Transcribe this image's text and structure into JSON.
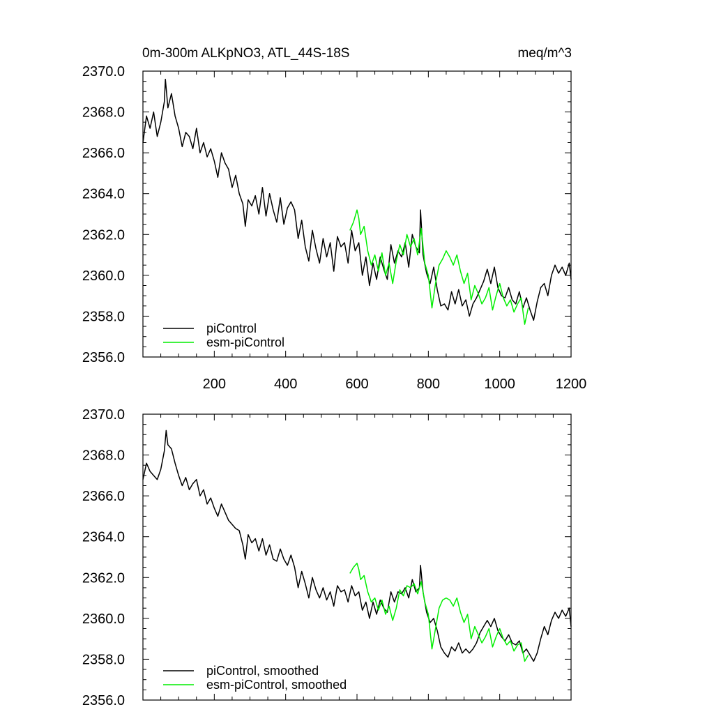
{
  "chart_data": [
    {
      "type": "line",
      "title": "0m-300m ALKpNO3, ATL_44S-18S",
      "units": "meq/m^3",
      "xlim": [
        0,
        1200
      ],
      "ylim": [
        2356.0,
        2370.0
      ],
      "x_ticks": [
        200,
        400,
        600,
        800,
        1000,
        1200
      ],
      "y_ticks": [
        "2356.0",
        "2358.0",
        "2360.0",
        "2362.0",
        "2364.0",
        "2366.0",
        "2368.0",
        "2370.0"
      ],
      "legend_position": "bottom-left",
      "series": [
        {
          "name": "piControl",
          "color": "#000000",
          "x": [
            0,
            10,
            20,
            30,
            40,
            50,
            60,
            63,
            70,
            80,
            90,
            100,
            110,
            120,
            130,
            140,
            150,
            160,
            170,
            180,
            190,
            200,
            210,
            220,
            230,
            240,
            250,
            260,
            270,
            280,
            287,
            295,
            305,
            315,
            325,
            335,
            345,
            355,
            365,
            375,
            385,
            395,
            405,
            415,
            425,
            435,
            445,
            455,
            465,
            475,
            485,
            495,
            505,
            515,
            525,
            535,
            545,
            555,
            565,
            575,
            585,
            595,
            605,
            615,
            625,
            635,
            645,
            655,
            665,
            675,
            685,
            695,
            705,
            715,
            725,
            735,
            745,
            755,
            765,
            775,
            778,
            785,
            795,
            805,
            815,
            825,
            835,
            845,
            855,
            865,
            875,
            885,
            895,
            905,
            915,
            925,
            935,
            945,
            955,
            965,
            975,
            985,
            995,
            1005,
            1015,
            1025,
            1035,
            1045,
            1055,
            1065,
            1075,
            1085,
            1095,
            1105,
            1115,
            1125,
            1135,
            1145,
            1155,
            1165,
            1175,
            1185,
            1195,
            1200
          ],
          "y": [
            2366.5,
            2367.8,
            2367.2,
            2368.0,
            2366.8,
            2367.5,
            2368.5,
            2369.6,
            2368.2,
            2368.9,
            2367.8,
            2367.2,
            2366.3,
            2367.0,
            2366.8,
            2366.2,
            2367.2,
            2366.0,
            2366.5,
            2365.8,
            2366.2,
            2365.6,
            2364.8,
            2366.0,
            2365.5,
            2365.2,
            2364.3,
            2364.9,
            2364.0,
            2363.5,
            2362.4,
            2363.7,
            2363.4,
            2363.9,
            2363.0,
            2364.3,
            2362.9,
            2364.0,
            2363.2,
            2362.6,
            2363.8,
            2362.5,
            2363.3,
            2363.6,
            2363.2,
            2361.8,
            2362.7,
            2361.4,
            2360.7,
            2362.2,
            2361.3,
            2360.6,
            2361.8,
            2360.9,
            2361.6,
            2360.2,
            2361.9,
            2361.4,
            2361.6,
            2360.6,
            2362.2,
            2361.2,
            2361.6,
            2360.0,
            2360.9,
            2359.5,
            2360.6,
            2359.8,
            2360.9,
            2360.3,
            2359.8,
            2361.5,
            2360.6,
            2361.2,
            2360.9,
            2361.6,
            2360.4,
            2362.0,
            2361.4,
            2361.1,
            2363.2,
            2361.0,
            2360.1,
            2359.6,
            2360.4,
            2359.3,
            2358.5,
            2358.6,
            2358.3,
            2359.2,
            2358.6,
            2359.3,
            2358.5,
            2358.8,
            2358.0,
            2358.6,
            2358.9,
            2359.3,
            2359.7,
            2360.3,
            2359.6,
            2360.4,
            2359.4,
            2359.0,
            2358.9,
            2359.4,
            2358.8,
            2358.6,
            2359.2,
            2358.4,
            2358.9,
            2358.3,
            2357.8,
            2358.7,
            2359.4,
            2359.6,
            2359.0,
            2360.0,
            2360.5,
            2360.1,
            2360.4,
            2360.0,
            2360.6,
            2359.8
          ]
        },
        {
          "name": "esm-piControl",
          "color": "#00ee00",
          "x": [
            580,
            590,
            600,
            605,
            610,
            620,
            630,
            640,
            650,
            660,
            670,
            680,
            690,
            700,
            710,
            720,
            730,
            740,
            750,
            760,
            770,
            780,
            790,
            800,
            810,
            820,
            830,
            840,
            850,
            860,
            870,
            880,
            890,
            900,
            910,
            920,
            930,
            940,
            950,
            960,
            970,
            980,
            990,
            1000,
            1010,
            1020,
            1030,
            1040,
            1050,
            1060,
            1070,
            1080
          ],
          "y": [
            2362.2,
            2362.6,
            2363.2,
            2362.8,
            2362.0,
            2362.4,
            2361.2,
            2360.5,
            2361.0,
            2360.2,
            2361.1,
            2360.0,
            2360.6,
            2359.6,
            2360.7,
            2361.5,
            2361.0,
            2362.0,
            2361.4,
            2361.8,
            2361.0,
            2362.3,
            2360.6,
            2360.0,
            2358.4,
            2359.6,
            2360.5,
            2360.8,
            2361.2,
            2360.9,
            2360.5,
            2361.0,
            2360.2,
            2359.6,
            2360.1,
            2358.8,
            2359.5,
            2359.1,
            2358.6,
            2358.9,
            2359.4,
            2358.3,
            2359.0,
            2359.6,
            2358.9,
            2358.5,
            2358.8,
            2358.2,
            2358.6,
            2358.9,
            2357.6,
            2358.4
          ]
        }
      ]
    },
    {
      "type": "line",
      "title": "",
      "xlim": [
        0,
        1200
      ],
      "ylim": [
        2356.0,
        2370.0
      ],
      "y_ticks": [
        "2356.0",
        "2358.0",
        "2360.0",
        "2362.0",
        "2364.0",
        "2366.0",
        "2368.0",
        "2370.0"
      ],
      "legend_position": "bottom-left",
      "series": [
        {
          "name": "piControl, smoothed",
          "color": "#000000",
          "x": [
            0,
            10,
            20,
            30,
            40,
            50,
            60,
            65,
            70,
            80,
            90,
            100,
            110,
            120,
            130,
            140,
            150,
            160,
            170,
            180,
            190,
            200,
            210,
            220,
            230,
            240,
            250,
            260,
            270,
            280,
            287,
            295,
            305,
            315,
            325,
            335,
            345,
            355,
            365,
            375,
            385,
            395,
            405,
            415,
            425,
            435,
            445,
            455,
            465,
            475,
            485,
            495,
            505,
            515,
            525,
            535,
            545,
            555,
            565,
            575,
            585,
            595,
            605,
            615,
            625,
            635,
            645,
            655,
            665,
            675,
            685,
            695,
            705,
            715,
            725,
            735,
            745,
            755,
            765,
            775,
            778,
            785,
            795,
            805,
            815,
            825,
            835,
            845,
            855,
            865,
            875,
            885,
            895,
            905,
            915,
            925,
            935,
            945,
            955,
            965,
            975,
            985,
            995,
            1005,
            1015,
            1025,
            1035,
            1045,
            1055,
            1065,
            1075,
            1085,
            1095,
            1105,
            1115,
            1125,
            1135,
            1145,
            1155,
            1165,
            1175,
            1185,
            1195,
            1200
          ],
          "y": [
            2366.8,
            2367.6,
            2367.2,
            2367.0,
            2366.8,
            2367.3,
            2368.2,
            2369.2,
            2368.5,
            2368.3,
            2367.6,
            2367.0,
            2366.5,
            2366.9,
            2366.3,
            2366.6,
            2366.8,
            2366.0,
            2366.3,
            2365.6,
            2365.9,
            2365.4,
            2365.0,
            2365.6,
            2365.2,
            2364.8,
            2364.6,
            2364.4,
            2364.3,
            2363.6,
            2362.9,
            2364.1,
            2363.7,
            2363.9,
            2363.3,
            2363.9,
            2363.1,
            2363.6,
            2362.9,
            2362.8,
            2363.4,
            2362.9,
            2362.6,
            2363.1,
            2362.5,
            2361.5,
            2362.3,
            2361.7,
            2361.0,
            2362.0,
            2361.4,
            2361.0,
            2361.5,
            2360.9,
            2361.3,
            2360.6,
            2361.6,
            2361.3,
            2361.4,
            2360.8,
            2361.6,
            2361.1,
            2361.3,
            2360.4,
            2360.8,
            2360.0,
            2360.8,
            2360.2,
            2360.9,
            2360.5,
            2360.3,
            2361.3,
            2360.8,
            2361.3,
            2361.2,
            2361.5,
            2361.0,
            2361.9,
            2361.3,
            2361.5,
            2362.6,
            2361.3,
            2360.3,
            2359.8,
            2360.0,
            2359.4,
            2358.6,
            2358.3,
            2358.1,
            2358.6,
            2358.4,
            2358.8,
            2358.3,
            2358.5,
            2358.3,
            2358.5,
            2358.8,
            2359.3,
            2359.6,
            2359.9,
            2359.6,
            2360.0,
            2359.4,
            2359.1,
            2358.9,
            2359.2,
            2358.8,
            2358.7,
            2358.9,
            2358.3,
            2358.5,
            2358.2,
            2357.9,
            2358.3,
            2359.0,
            2359.6,
            2359.2,
            2359.9,
            2360.3,
            2360.0,
            2360.4,
            2360.1,
            2360.5,
            2359.6
          ]
        },
        {
          "name": "esm-piControl, smoothed",
          "color": "#00ee00",
          "x": [
            580,
            590,
            600,
            605,
            610,
            620,
            630,
            640,
            650,
            660,
            670,
            680,
            690,
            700,
            710,
            720,
            730,
            740,
            750,
            760,
            770,
            780,
            790,
            800,
            810,
            820,
            830,
            840,
            850,
            860,
            870,
            880,
            890,
            900,
            910,
            920,
            930,
            940,
            950,
            960,
            970,
            980,
            990,
            1000,
            1010,
            1020,
            1030,
            1040,
            1050,
            1060,
            1070,
            1080
          ],
          "y": [
            2362.2,
            2362.5,
            2362.7,
            2362.4,
            2361.9,
            2362.1,
            2361.3,
            2360.8,
            2361.0,
            2360.4,
            2360.9,
            2360.2,
            2360.6,
            2359.9,
            2360.5,
            2361.4,
            2361.1,
            2361.6,
            2361.5,
            2361.7,
            2361.2,
            2361.8,
            2360.8,
            2360.2,
            2358.5,
            2359.5,
            2360.5,
            2360.9,
            2361.0,
            2360.9,
            2360.6,
            2361.0,
            2360.3,
            2359.8,
            2360.2,
            2359.0,
            2359.6,
            2359.2,
            2358.8,
            2359.1,
            2359.5,
            2358.6,
            2359.1,
            2359.5,
            2359.0,
            2358.7,
            2358.9,
            2358.4,
            2358.7,
            2358.8,
            2357.9,
            2358.2
          ]
        }
      ]
    }
  ]
}
